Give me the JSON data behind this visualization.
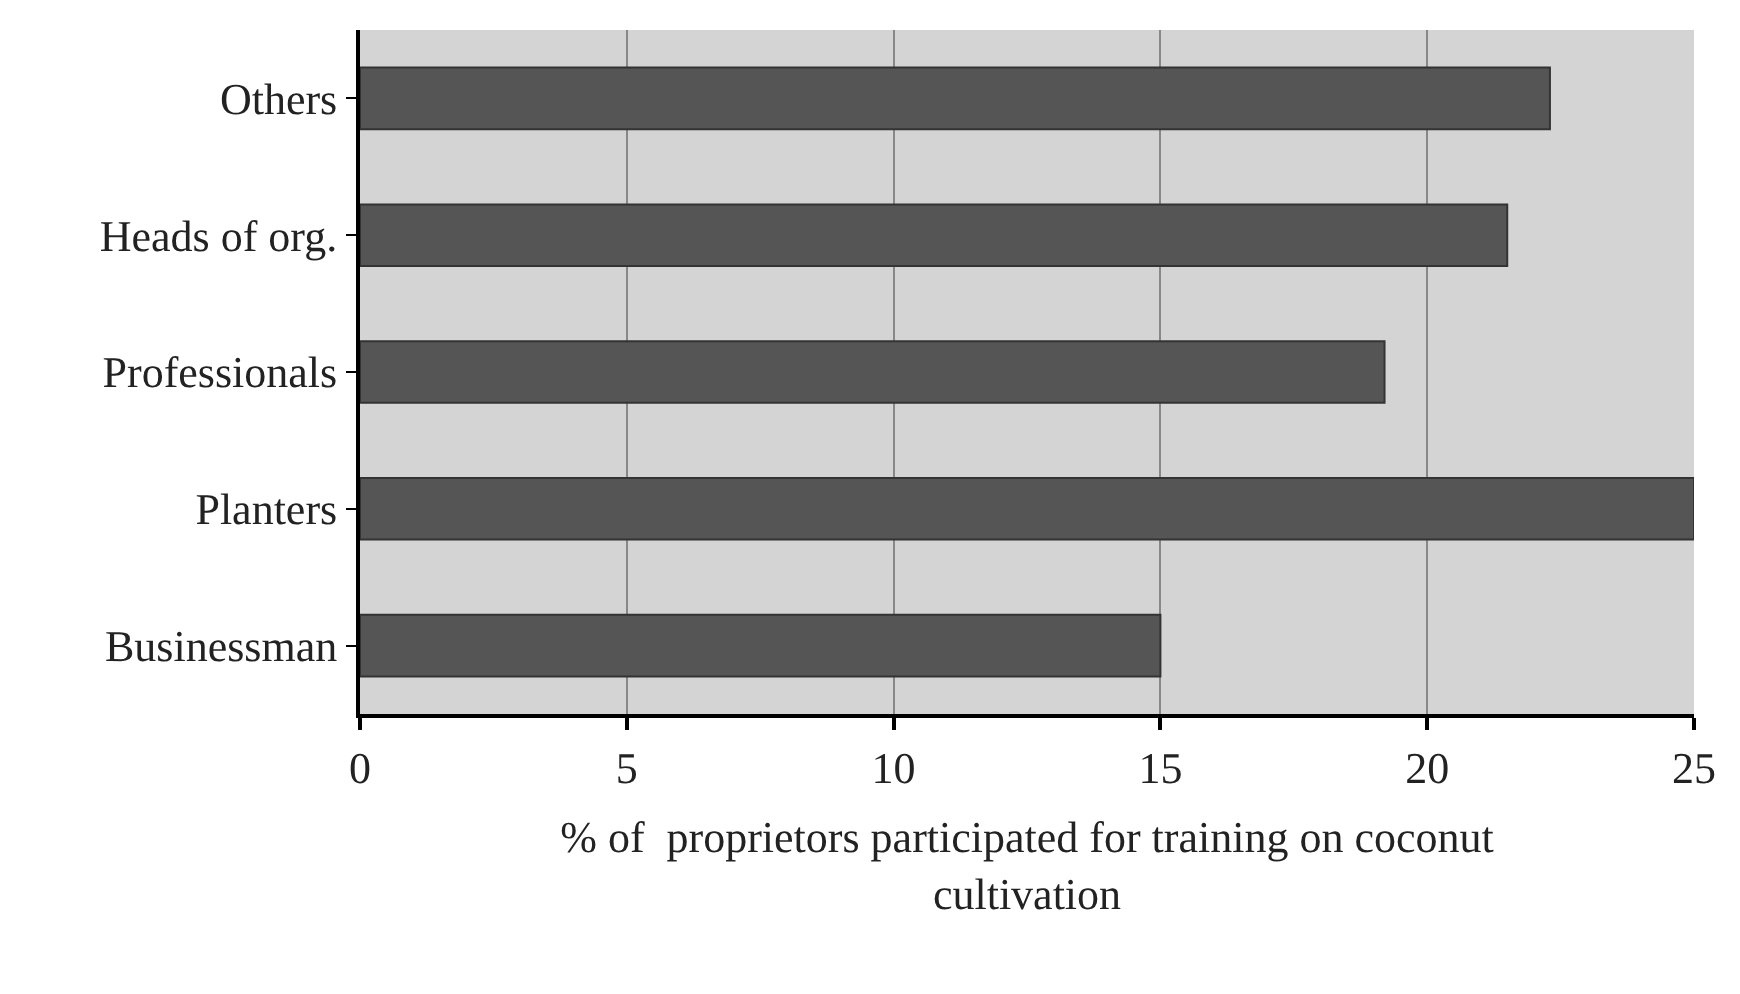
{
  "chart_data": {
    "type": "bar",
    "orientation": "horizontal",
    "categories": [
      "Others",
      "Heads of org.",
      "Professionals",
      "Planters",
      "Businessman"
    ],
    "values": [
      22.3,
      21.5,
      19.2,
      25,
      15
    ],
    "color": "#555555",
    "xlabel": "% of  proprietors participated for training on coconut cultivation",
    "xlim": [
      0,
      25
    ],
    "xticks": [
      0,
      5,
      10,
      15,
      20,
      25
    ],
    "grid": "x"
  }
}
